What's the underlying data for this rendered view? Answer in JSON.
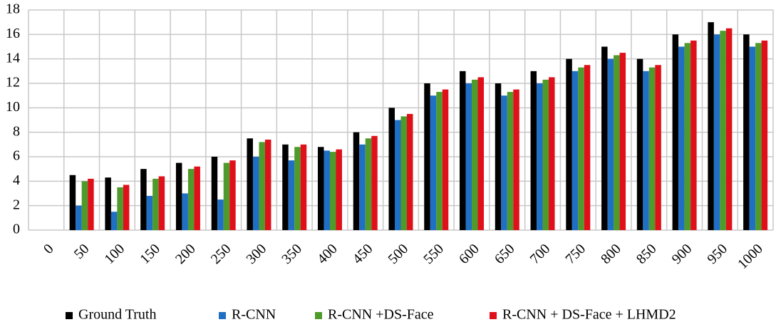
{
  "chart_data": {
    "type": "bar",
    "categories": [
      "0",
      "50",
      "100",
      "150",
      "200",
      "250",
      "300",
      "350",
      "400",
      "450",
      "500",
      "550",
      "600",
      "650",
      "700",
      "750",
      "800",
      "850",
      "900",
      "950",
      "1000"
    ],
    "series": [
      {
        "name": "Ground Truth",
        "color": "#000000",
        "values": [
          null,
          4.5,
          4.3,
          5,
          5.5,
          6,
          7.5,
          7,
          6.8,
          8,
          10,
          12,
          13,
          12,
          13,
          14,
          15,
          14,
          16,
          17,
          16
        ]
      },
      {
        "name": "R-CNN",
        "color": "#1f6fc5",
        "values": [
          null,
          2,
          1.5,
          2.8,
          3,
          2.5,
          6,
          5.7,
          6.5,
          7,
          9,
          11,
          12,
          11,
          12,
          13,
          14,
          13,
          15,
          16,
          15
        ]
      },
      {
        "name": "R-CNN +DS-Face",
        "color": "#4e9a2a",
        "values": [
          null,
          4,
          3.5,
          4.2,
          5,
          5.5,
          7.2,
          6.8,
          6.4,
          7.5,
          9.3,
          11.3,
          12.3,
          11.3,
          12.3,
          13.3,
          14.3,
          13.3,
          15.3,
          16.3,
          15.3
        ]
      },
      {
        "name": "R-CNN + DS-Face + LHMD2",
        "color": "#e0101a",
        "values": [
          null,
          4.2,
          3.7,
          4.4,
          5.2,
          5.7,
          7.4,
          7,
          6.6,
          7.7,
          9.5,
          11.5,
          12.5,
          11.5,
          12.5,
          13.5,
          14.5,
          13.5,
          15.5,
          16.5,
          15.5
        ]
      }
    ],
    "ylim": [
      0,
      18
    ],
    "yticks": [
      0,
      2,
      4,
      6,
      8,
      10,
      12,
      14,
      16,
      18
    ],
    "grid": true,
    "legend": "bottom"
  }
}
